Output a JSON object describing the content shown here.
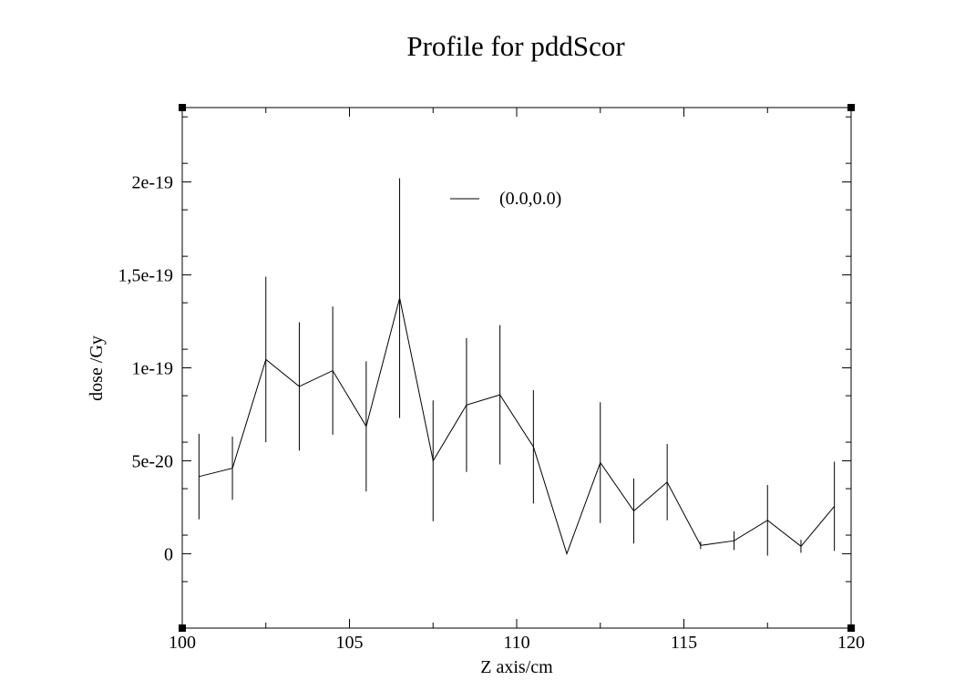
{
  "chart_data": {
    "type": "line",
    "title": "Profile for pddScor",
    "xlabel": "Z axis/cm",
    "ylabel": "dose /Gy",
    "xlim": [
      100,
      120
    ],
    "ylim": [
      -4e-20,
      2.4e-19
    ],
    "x_ticks": [
      {
        "value": 100,
        "label": "100"
      },
      {
        "value": 105,
        "label": "105"
      },
      {
        "value": 110,
        "label": "110"
      },
      {
        "value": 115,
        "label": "115"
      },
      {
        "value": 120,
        "label": "120"
      }
    ],
    "y_ticks": [
      {
        "value": 0,
        "label": "0"
      },
      {
        "value": 5e-20,
        "label": "5e-20"
      },
      {
        "value": 1e-19,
        "label": "1e-19"
      },
      {
        "value": 1.5e-19,
        "label": "1,5e-19"
      },
      {
        "value": 2e-19,
        "label": "2e-19"
      }
    ],
    "x_minor_step": 2.5,
    "y_minor_step": 2.5e-20,
    "grid": false,
    "legend_position": "top-center",
    "series": [
      {
        "name": "(0.0,0.0)",
        "color": "#000000",
        "x": [
          100.5,
          101.5,
          102.5,
          103.5,
          104.5,
          105.5,
          106.5,
          107.5,
          108.5,
          109.5,
          110.5,
          111.5,
          112.5,
          113.5,
          114.5,
          115.5,
          116.5,
          117.5,
          118.5,
          119.5
        ],
        "y": [
          4.15e-20,
          4.6e-20,
          1.045e-19,
          9e-20,
          9.85e-20,
          6.85e-20,
          1.375e-19,
          5e-20,
          8e-20,
          8.55e-20,
          5.75e-20,
          0,
          4.9e-20,
          2.3e-20,
          3.85e-20,
          4.5e-21,
          7e-21,
          1.8e-20,
          4e-21,
          2.55e-20
        ],
        "error": [
          2.3e-20,
          1.7e-20,
          4.45e-20,
          3.45e-20,
          3.45e-20,
          3.5e-20,
          6.45e-20,
          3.25e-20,
          3.6e-20,
          3.75e-20,
          3.05e-20,
          0,
          3.25e-20,
          1.75e-20,
          2.05e-20,
          2e-21,
          5e-21,
          1.9e-20,
          3.5e-21,
          2.4e-20
        ]
      }
    ]
  }
}
